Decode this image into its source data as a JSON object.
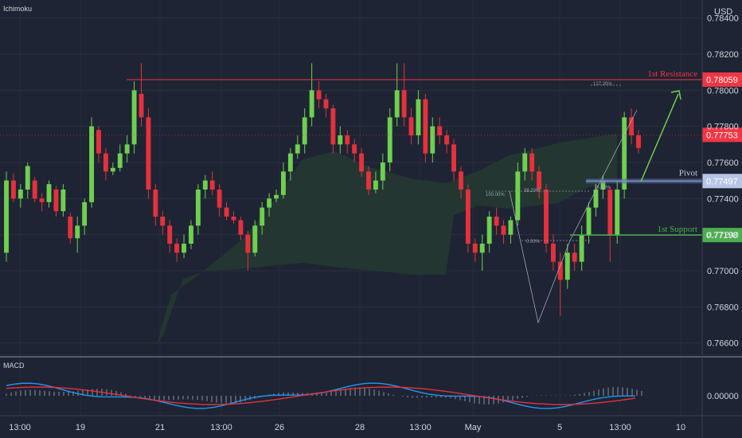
{
  "chart_data": {
    "type": "candlestick",
    "indicator_label": "Ichimoku",
    "macd_label": "MACD",
    "currency": "USD",
    "y_ticks": [
      "0.78400",
      "0.78200",
      "0.78000",
      "0.77800",
      "0.77600",
      "0.77400",
      "0.77200",
      "0.77000",
      "0.76800",
      "0.76600"
    ],
    "macd_tick": "0.00000",
    "ylim": [
      0.7655,
      0.785
    ],
    "x_labels": [
      "13:00",
      "19",
      "21",
      "13:00",
      "26",
      "28",
      "13:00",
      "May",
      "5",
      "13:00",
      "10"
    ],
    "levels": {
      "resistance": {
        "label": "1st Resistance",
        "value": 0.78059,
        "tag": "0.78059",
        "color": "#f23645"
      },
      "pivot": {
        "label": "Pivot",
        "value": 0.77497,
        "tag": "0.77497",
        "color": "#7f93c9"
      },
      "support": {
        "label": "1st Support",
        "value": 0.77198,
        "tag": "0.77198",
        "color": "#4caf50"
      },
      "current": {
        "value": 0.77753,
        "tag": "0.77753",
        "color": "#f23645"
      }
    },
    "fib_labels": [
      "127.20%",
      "100.00%",
      "38.20%",
      "78.60%",
      "0.00%"
    ],
    "candles": [
      [
        0.771,
        0.775,
        0.7705,
        0.7755,
        "up"
      ],
      [
        0.775,
        0.774,
        0.7738,
        0.7754,
        "down"
      ],
      [
        0.774,
        0.7745,
        0.7735,
        0.7748,
        "up"
      ],
      [
        0.7745,
        0.7758,
        0.774,
        0.776,
        "up"
      ],
      [
        0.775,
        0.774,
        0.7738,
        0.7752,
        "down"
      ],
      [
        0.774,
        0.7738,
        0.7733,
        0.7743,
        "down"
      ],
      [
        0.7738,
        0.7748,
        0.7735,
        0.775,
        "up"
      ],
      [
        0.7745,
        0.7733,
        0.773,
        0.7747,
        "down"
      ],
      [
        0.7733,
        0.7745,
        0.773,
        0.7748,
        "up"
      ],
      [
        0.773,
        0.7718,
        0.7715,
        0.7732,
        "down"
      ],
      [
        0.7718,
        0.7725,
        0.771,
        0.773,
        "up"
      ],
      [
        0.7725,
        0.7738,
        0.772,
        0.774,
        "up"
      ],
      [
        0.7738,
        0.778,
        0.7735,
        0.7785,
        "up"
      ],
      [
        0.7778,
        0.7765,
        0.776,
        0.778,
        "down"
      ],
      [
        0.7765,
        0.7755,
        0.775,
        0.7768,
        "down"
      ],
      [
        0.7755,
        0.7757,
        0.7753,
        0.776,
        "up"
      ],
      [
        0.7757,
        0.7765,
        0.7755,
        0.777,
        "up"
      ],
      [
        0.7765,
        0.777,
        0.776,
        0.7775,
        "up"
      ],
      [
        0.777,
        0.78,
        0.7765,
        0.7805,
        "up"
      ],
      [
        0.7798,
        0.7785,
        0.778,
        0.7815,
        "down"
      ],
      [
        0.7785,
        0.7745,
        0.774,
        0.779,
        "down"
      ],
      [
        0.7745,
        0.773,
        0.7725,
        0.7748,
        "down"
      ],
      [
        0.773,
        0.7725,
        0.772,
        0.7733,
        "down"
      ],
      [
        0.7725,
        0.7715,
        0.771,
        0.7728,
        "down"
      ],
      [
        0.7715,
        0.771,
        0.7705,
        0.7718,
        "down"
      ],
      [
        0.771,
        0.7715,
        0.7707,
        0.772,
        "up"
      ],
      [
        0.7715,
        0.7725,
        0.7712,
        0.7728,
        "up"
      ],
      [
        0.7725,
        0.7745,
        0.772,
        0.7748,
        "up"
      ],
      [
        0.7745,
        0.775,
        0.774,
        0.7753,
        "up"
      ],
      [
        0.775,
        0.7745,
        0.7742,
        0.7755,
        "down"
      ],
      [
        0.7745,
        0.7735,
        0.773,
        0.7748,
        "down"
      ],
      [
        0.7735,
        0.773,
        0.7728,
        0.7738,
        "down"
      ],
      [
        0.773,
        0.7728,
        0.7726,
        0.7733,
        "down"
      ],
      [
        0.7728,
        0.772,
        0.7717,
        0.773,
        "down"
      ],
      [
        0.772,
        0.771,
        0.77,
        0.7722,
        "down"
      ],
      [
        0.771,
        0.7725,
        0.7708,
        0.7728,
        "up"
      ],
      [
        0.7725,
        0.7735,
        0.772,
        0.7738,
        "up"
      ],
      [
        0.7735,
        0.774,
        0.773,
        0.7743,
        "up"
      ],
      [
        0.774,
        0.7742,
        0.7738,
        0.7745,
        "up"
      ],
      [
        0.7742,
        0.7755,
        0.774,
        0.776,
        "up"
      ],
      [
        0.7755,
        0.7765,
        0.775,
        0.7768,
        "up"
      ],
      [
        0.7765,
        0.777,
        0.7762,
        0.7775,
        "up"
      ],
      [
        0.777,
        0.7785,
        0.7765,
        0.779,
        "up"
      ],
      [
        0.7785,
        0.78,
        0.778,
        0.7815,
        "up"
      ],
      [
        0.78,
        0.7795,
        0.779,
        0.7805,
        "down"
      ],
      [
        0.7795,
        0.779,
        0.7785,
        0.7798,
        "down"
      ],
      [
        0.779,
        0.777,
        0.7765,
        0.7792,
        "down"
      ],
      [
        0.777,
        0.7775,
        0.7765,
        0.778,
        "up"
      ],
      [
        0.7775,
        0.777,
        0.7765,
        0.7778,
        "down"
      ],
      [
        0.777,
        0.7765,
        0.776,
        0.7773,
        "down"
      ],
      [
        0.7765,
        0.7755,
        0.7752,
        0.7768,
        "down"
      ],
      [
        0.7755,
        0.7745,
        0.7742,
        0.7758,
        "down"
      ],
      [
        0.7745,
        0.775,
        0.7743,
        0.7755,
        "up"
      ],
      [
        0.775,
        0.776,
        0.7745,
        0.7765,
        "up"
      ],
      [
        0.776,
        0.7785,
        0.7755,
        0.779,
        "up"
      ],
      [
        0.7785,
        0.78,
        0.778,
        0.7815,
        "up"
      ],
      [
        0.78,
        0.7785,
        0.778,
        0.7815,
        "down"
      ],
      [
        0.7785,
        0.7775,
        0.777,
        0.779,
        "down"
      ],
      [
        0.7775,
        0.7795,
        0.777,
        0.78,
        "up"
      ],
      [
        0.7795,
        0.7765,
        0.776,
        0.7798,
        "down"
      ],
      [
        0.7765,
        0.778,
        0.776,
        0.7785,
        "up"
      ],
      [
        0.778,
        0.7775,
        0.777,
        0.7785,
        "down"
      ],
      [
        0.7775,
        0.777,
        0.7765,
        0.7778,
        "down"
      ],
      [
        0.777,
        0.7755,
        0.775,
        0.7773,
        "down"
      ],
      [
        0.7755,
        0.7745,
        0.774,
        0.7758,
        "down"
      ],
      [
        0.7745,
        0.7715,
        0.771,
        0.7748,
        "down"
      ],
      [
        0.7715,
        0.771,
        0.7705,
        0.7718,
        "down"
      ],
      [
        0.771,
        0.7715,
        0.77,
        0.772,
        "up"
      ],
      [
        0.7715,
        0.773,
        0.771,
        0.7733,
        "up"
      ],
      [
        0.773,
        0.7725,
        0.772,
        0.7735,
        "down"
      ],
      [
        0.7725,
        0.772,
        0.7715,
        0.7728,
        "down"
      ],
      [
        0.772,
        0.7728,
        0.7715,
        0.773,
        "up"
      ],
      [
        0.7728,
        0.7755,
        0.7725,
        0.776,
        "up"
      ],
      [
        0.7755,
        0.7765,
        0.775,
        0.7768,
        "up"
      ],
      [
        0.7765,
        0.7755,
        0.775,
        0.7768,
        "down"
      ],
      [
        0.7755,
        0.7745,
        0.774,
        0.7758,
        "down"
      ],
      [
        0.7745,
        0.7715,
        0.771,
        0.7748,
        "down"
      ],
      [
        0.7715,
        0.7705,
        0.77,
        0.772,
        "down"
      ],
      [
        0.7705,
        0.7695,
        0.7675,
        0.771,
        "down"
      ],
      [
        0.7695,
        0.771,
        0.769,
        0.7715,
        "up"
      ],
      [
        0.771,
        0.7705,
        0.77,
        0.7715,
        "down"
      ],
      [
        0.7705,
        0.772,
        0.77,
        0.7725,
        "up"
      ],
      [
        0.772,
        0.7735,
        0.7715,
        0.7738,
        "up"
      ],
      [
        0.7735,
        0.7745,
        0.773,
        0.7748,
        "up"
      ],
      [
        0.7745,
        0.775,
        0.774,
        0.7753,
        "up"
      ],
      [
        0.7745,
        0.772,
        0.7705,
        0.7747,
        "down"
      ],
      [
        0.772,
        0.7745,
        0.7715,
        0.775,
        "up"
      ],
      [
        0.7745,
        0.7785,
        0.774,
        0.7788,
        "up"
      ],
      [
        0.7785,
        0.7775,
        0.777,
        0.779,
        "down"
      ],
      [
        0.7775,
        0.7768,
        0.7765,
        0.7778,
        "down"
      ]
    ]
  }
}
